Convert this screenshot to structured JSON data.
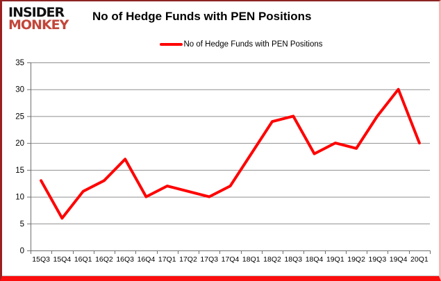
{
  "logo": {
    "line1": "INSIDER",
    "line2": "MONKEY"
  },
  "header": {
    "title": "No of Hedge Funds with PEN Positions"
  },
  "legend": {
    "label": "No of Hedge Funds with PEN Positions",
    "line_color": "#ff0000"
  },
  "colors": {
    "series_red": "#ff0000",
    "brand_red": "#c2463a",
    "gridline_gray": "#8f8f8f",
    "axis_gray": "#6e6e6e",
    "frame_bottom_red": "#fb0e0e"
  },
  "chart_data": {
    "type": "line",
    "title": "No of Hedge Funds with PEN Positions",
    "categories": [
      "15Q3",
      "15Q4",
      "16Q1",
      "16Q2",
      "16Q3",
      "16Q4",
      "17Q1",
      "17Q2",
      "17Q3",
      "17Q4",
      "18Q1",
      "18Q2",
      "18Q3",
      "18Q4",
      "19Q1",
      "19Q2",
      "19Q3",
      "19Q4",
      "20Q1"
    ],
    "series": [
      {
        "name": "No of Hedge Funds with PEN Positions",
        "color": "#ff0000",
        "values": [
          13,
          6,
          11,
          13,
          17,
          10,
          12,
          11,
          10,
          12,
          18,
          24,
          25,
          18,
          20,
          19,
          25,
          30,
          20
        ]
      }
    ],
    "xlabel": "",
    "ylabel": "",
    "ylim": [
      0,
      35
    ],
    "ytick_step": 5,
    "grid": true,
    "legend_position": "top-center"
  }
}
